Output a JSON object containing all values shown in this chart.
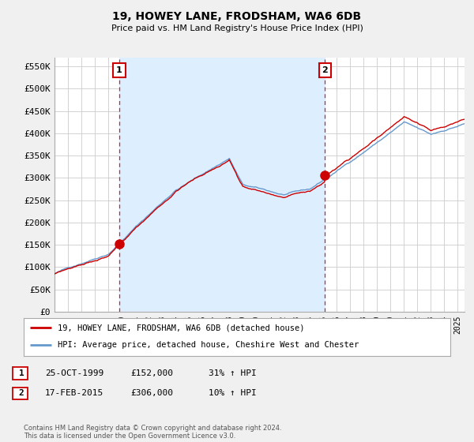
{
  "title": "19, HOWEY LANE, FRODSHAM, WA6 6DB",
  "subtitle": "Price paid vs. HM Land Registry's House Price Index (HPI)",
  "ylabel_ticks": [
    "£0",
    "£50K",
    "£100K",
    "£150K",
    "£200K",
    "£250K",
    "£300K",
    "£350K",
    "£400K",
    "£450K",
    "£500K",
    "£550K"
  ],
  "ytick_values": [
    0,
    50000,
    100000,
    150000,
    200000,
    250000,
    300000,
    350000,
    400000,
    450000,
    500000,
    550000
  ],
  "ylim": [
    0,
    570000
  ],
  "xlim_start": 1995.0,
  "xlim_end": 2025.5,
  "sale1_date": 1999.81,
  "sale1_price": 152000,
  "sale1_label": "1",
  "sale2_date": 2015.12,
  "sale2_price": 306000,
  "sale2_label": "2",
  "legend_line1": "19, HOWEY LANE, FRODSHAM, WA6 6DB (detached house)",
  "legend_line2": "HPI: Average price, detached house, Cheshire West and Chester",
  "table_row1": [
    "1",
    "25-OCT-1999",
    "£152,000",
    "31% ↑ HPI"
  ],
  "table_row2": [
    "2",
    "17-FEB-2015",
    "£306,000",
    "10% ↑ HPI"
  ],
  "footer": "Contains HM Land Registry data © Crown copyright and database right 2024.\nThis data is licensed under the Open Government Licence v3.0.",
  "red_color": "#cc0000",
  "blue_color": "#6699cc",
  "bg_color": "#f0f0f0",
  "plot_bg": "#ffffff",
  "shade_color": "#ddeeff",
  "grid_color": "#cccccc",
  "vline_color": "#cc0000"
}
